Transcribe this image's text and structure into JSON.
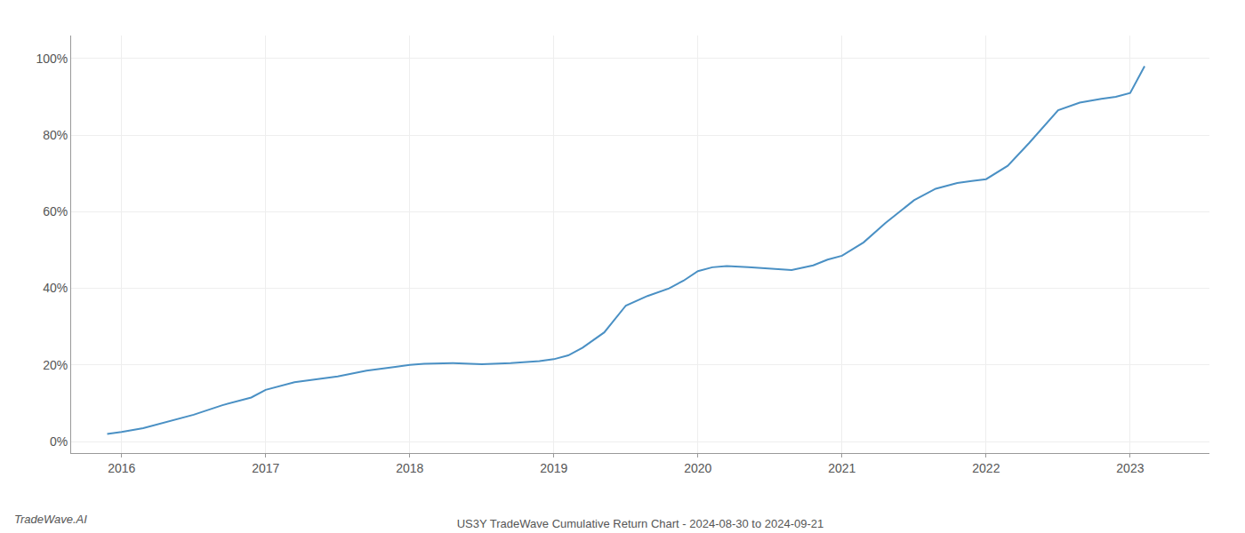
{
  "chart_data": {
    "type": "line",
    "title": "US3Y TradeWave Cumulative Return Chart - 2024-08-30 to 2024-09-21",
    "annotations": [
      "TradeWave.AI"
    ],
    "color": "#4a90c4",
    "grid": true,
    "x": [
      2015.9,
      2016.0,
      2016.15,
      2016.3,
      2016.5,
      2016.7,
      2016.9,
      2017.0,
      2017.2,
      2017.5,
      2017.7,
      2017.9,
      2018.0,
      2018.1,
      2018.3,
      2018.5,
      2018.7,
      2018.9,
      2019.0,
      2019.1,
      2019.2,
      2019.35,
      2019.5,
      2019.65,
      2019.8,
      2019.9,
      2020.0,
      2020.1,
      2020.2,
      2020.35,
      2020.5,
      2020.65,
      2020.8,
      2020.9,
      2021.0,
      2021.15,
      2021.3,
      2021.5,
      2021.65,
      2021.8,
      2021.9,
      2022.0,
      2022.15,
      2022.3,
      2022.5,
      2022.65,
      2022.8,
      2022.9,
      2023.0,
      2023.1
    ],
    "values": [
      2.0,
      2.5,
      3.5,
      5.0,
      7.0,
      9.5,
      11.5,
      13.5,
      15.5,
      17.0,
      18.5,
      19.5,
      20.0,
      20.3,
      20.5,
      20.2,
      20.5,
      21.0,
      21.5,
      22.5,
      24.5,
      28.5,
      35.5,
      38.0,
      40.0,
      42.0,
      44.5,
      45.5,
      45.8,
      45.5,
      45.2,
      44.8,
      46.0,
      47.5,
      48.5,
      52.0,
      57.0,
      63.0,
      66.0,
      67.5,
      68.0,
      68.5,
      72.0,
      78.0,
      86.5,
      88.5,
      89.5,
      90.0,
      91.0,
      98.0
    ],
    "xlim": [
      2015.65,
      2023.55
    ],
    "xticks": [
      2016,
      2017,
      2018,
      2019,
      2020,
      2021,
      2022,
      2023
    ],
    "ylim": [
      -3,
      106
    ],
    "yticks": [
      {
        "value": 0,
        "label": "0%"
      },
      {
        "value": 20,
        "label": "20%"
      },
      {
        "value": 40,
        "label": "40%"
      },
      {
        "value": 60,
        "label": "60%"
      },
      {
        "value": 80,
        "label": "80%"
      },
      {
        "value": 100,
        "label": "100%"
      }
    ]
  }
}
